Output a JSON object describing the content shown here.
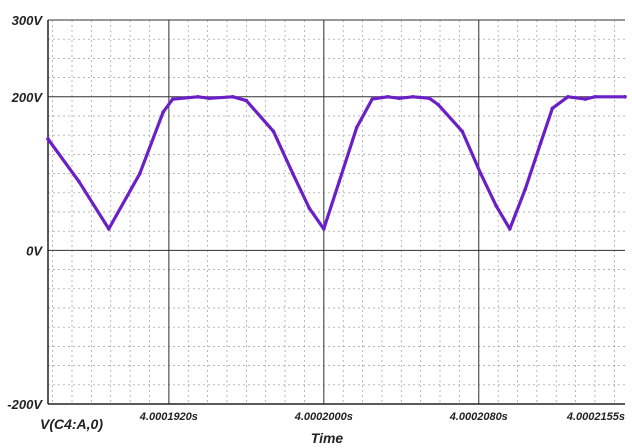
{
  "chart_data": {
    "type": "line",
    "xlabel": "Time",
    "ylabel": "",
    "trace_label": "V(C4:A,0)",
    "x_unit": "s",
    "y_unit": "V",
    "xlim": [
      4.00018576,
      4.00021555
    ],
    "ylim": [
      -200,
      300
    ],
    "grid": true,
    "color": "#6a1fc7",
    "y_ticks": [
      {
        "value": 300,
        "label": "300V"
      },
      {
        "value": 200,
        "label": "200V"
      },
      {
        "value": 0,
        "label": "0V"
      },
      {
        "value": -200,
        "label": "-200V"
      }
    ],
    "x_ticks": [
      {
        "value": 4.000192,
        "label": "4.0001920s"
      },
      {
        "value": 4.0002,
        "label": "4.0002000s"
      },
      {
        "value": 4.000208,
        "label": "4.0002080s"
      },
      {
        "value": 4.00021555,
        "label": "4.0002155s"
      }
    ],
    "series": [
      {
        "x": [
          4.00018576,
          4.00018735,
          4.0001889,
          4.0001905,
          4.0001917,
          4.0001922,
          4.0001935,
          4.0001941,
          4.0001953,
          4.000196,
          4.0001974,
          4.0001984,
          4.00019925,
          4.0002,
          4.0002008,
          4.0002017,
          4.0002025,
          4.0002033,
          4.0002039,
          4.0002046,
          4.00020545,
          4.0002059,
          4.00020715,
          4.0002081,
          4.0002089,
          4.0002096,
          4.0002104,
          4.0002112,
          4.0002118,
          4.0002126,
          4.0002135,
          4.000214,
          4.00021555
        ],
        "y": [
          145,
          90,
          28,
          100,
          180,
          197,
          200,
          198,
          200,
          195,
          155,
          100,
          55,
          28,
          90,
          160,
          197,
          200,
          198,
          200,
          198,
          190,
          155,
          100,
          58,
          28,
          80,
          140,
          185,
          200,
          197,
          200,
          200
        ]
      }
    ]
  }
}
